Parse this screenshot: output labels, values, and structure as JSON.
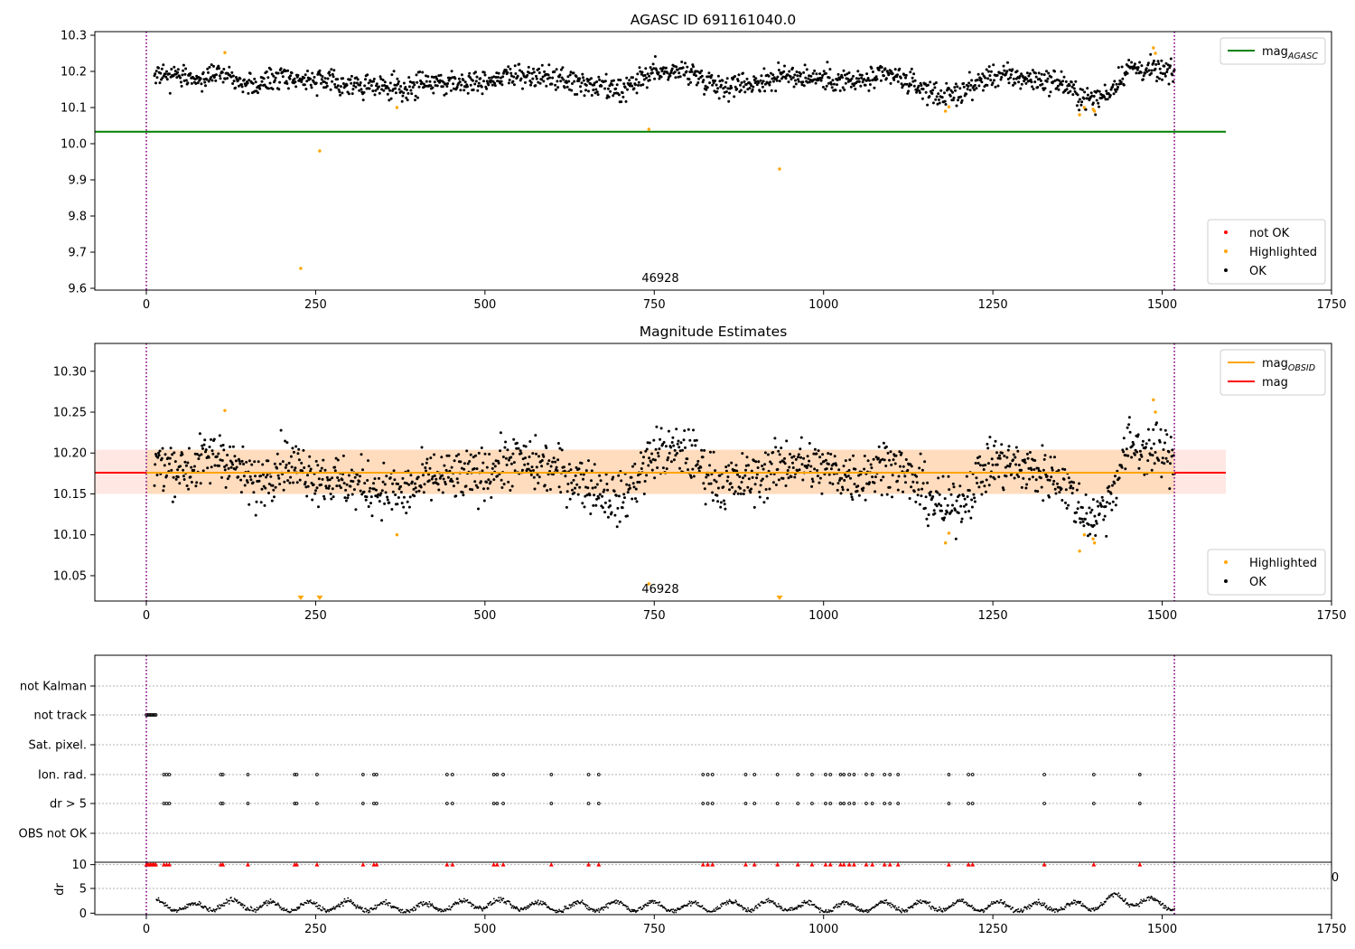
{
  "figure_title": "AGASC ID 691161040.0",
  "colors": {
    "ok": "#000000",
    "highlighted": "#ffa500",
    "not_ok": "#ff0000",
    "agasc_line": "#008000",
    "obsid_line": "#ffa500",
    "mag_line": "#ff0000",
    "obsid_band": "#ffdab9",
    "mag_band": "#ffe4e1",
    "obs_boundary": "#800080",
    "grid": "#b0b0b0"
  },
  "chart_data": [
    {
      "type": "scatter",
      "title": "AGASC ID 691161040.0",
      "xlim": [
        -76,
        1750
      ],
      "ylim": [
        9.595,
        10.31
      ],
      "x_ticks": [
        0,
        250,
        500,
        750,
        1000,
        1250,
        1500,
        1750
      ],
      "y_ticks": [
        "9.6",
        "9.7",
        "9.8",
        "9.9",
        "10.0",
        "10.1",
        "10.2",
        "10.3"
      ],
      "obsid_label": "46928",
      "obs_boundaries": [
        0,
        1518
      ],
      "hlines": [
        {
          "name": "mag_AGASC",
          "value": 10.033,
          "x": [
            -76,
            1594
          ],
          "color": "green"
        }
      ],
      "ok_trend": {
        "x": [
          12,
          60,
          110,
          160,
          200,
          260,
          320,
          380,
          420,
          480,
          540,
          600,
          660,
          700,
          750,
          800,
          850,
          900,
          950,
          1000,
          1050,
          1100,
          1150,
          1180,
          1200,
          1250,
          1300,
          1350,
          1380,
          1400,
          1420,
          1450,
          1500,
          1518
        ],
        "y": [
          10.19,
          10.18,
          10.2,
          10.16,
          10.19,
          10.17,
          10.16,
          10.15,
          10.17,
          10.17,
          10.19,
          10.18,
          10.16,
          10.14,
          10.2,
          10.2,
          10.16,
          10.17,
          10.19,
          10.18,
          10.17,
          10.19,
          10.15,
          10.13,
          10.14,
          10.19,
          10.18,
          10.17,
          10.13,
          10.12,
          10.14,
          10.21,
          10.2,
          10.19
        ],
        "scatter": 0.04,
        "count": 1500
      },
      "series": [
        {
          "name": "Highlighted",
          "marker": "point",
          "x": [
            116,
            228,
            256,
            370,
            742,
            935,
            1180,
            1185,
            1378,
            1385,
            1398,
            1400,
            1487,
            1490
          ],
          "y": [
            10.252,
            9.655,
            9.98,
            10.1,
            10.04,
            9.93,
            10.09,
            10.102,
            10.08,
            10.1,
            10.095,
            10.09,
            10.265,
            10.25
          ]
        }
      ],
      "legends": [
        {
          "placement": "upper right",
          "entries": [
            {
              "label": "mag",
              "sub": "AGASC",
              "style": "line",
              "color": "green"
            }
          ]
        },
        {
          "placement": "lower right",
          "entries": [
            {
              "label": "not OK",
              "style": "dot",
              "color": "red"
            },
            {
              "label": "Highlighted",
              "style": "dot",
              "color": "orange"
            },
            {
              "label": "OK",
              "style": "dot",
              "color": "black"
            }
          ]
        }
      ]
    },
    {
      "type": "scatter",
      "title": "Magnitude Estimates",
      "xlim": [
        -76,
        1750
      ],
      "ylim": [
        10.019,
        10.334
      ],
      "x_ticks": [
        0,
        250,
        500,
        750,
        1000,
        1250,
        1500,
        1750
      ],
      "y_ticks": [
        "10.05",
        "10.10",
        "10.15",
        "10.20",
        "10.25",
        "10.30"
      ],
      "obsid_label": "46928",
      "obs_boundaries": [
        0,
        1518
      ],
      "bands": [
        {
          "name": "mag range",
          "y": [
            10.15,
            10.204
          ],
          "x": [
            -76,
            1594
          ],
          "color": "mistyrose"
        },
        {
          "name": "mag_OBSID range",
          "y": [
            10.15,
            10.204
          ],
          "x": [
            0,
            1518
          ],
          "color": "peachpuff"
        }
      ],
      "hlines": [
        {
          "name": "mag",
          "value": 10.176,
          "x": [
            -76,
            1594
          ],
          "color": "red"
        },
        {
          "name": "mag_OBSID",
          "value": 10.176,
          "x": [
            0,
            1518
          ],
          "color": "orange"
        }
      ],
      "ok_trend": {
        "x": [
          12,
          60,
          110,
          160,
          200,
          260,
          320,
          380,
          420,
          480,
          540,
          600,
          660,
          700,
          750,
          800,
          850,
          900,
          950,
          1000,
          1050,
          1100,
          1150,
          1180,
          1200,
          1250,
          1300,
          1350,
          1380,
          1400,
          1420,
          1450,
          1500,
          1518
        ],
        "y": [
          10.19,
          10.18,
          10.2,
          10.16,
          10.19,
          10.17,
          10.16,
          10.15,
          10.17,
          10.17,
          10.19,
          10.18,
          10.16,
          10.14,
          10.2,
          10.2,
          10.16,
          10.17,
          10.19,
          10.18,
          10.17,
          10.19,
          10.15,
          10.13,
          10.14,
          10.19,
          10.18,
          10.17,
          10.13,
          10.12,
          10.14,
          10.21,
          10.2,
          10.19
        ],
        "scatter": 0.04,
        "count": 1500
      },
      "series": [
        {
          "name": "Highlighted",
          "marker": "point",
          "x": [
            116,
            370,
            742,
            1180,
            1185,
            1378,
            1385,
            1398,
            1400,
            1487,
            1490
          ],
          "y": [
            10.252,
            10.1,
            10.04,
            10.09,
            10.102,
            10.08,
            10.1,
            10.095,
            10.09,
            10.265,
            10.25
          ]
        },
        {
          "name": "Highlighted (below axis)",
          "marker": "triangle-down",
          "x": [
            228,
            256,
            935
          ],
          "y": [
            10.02,
            10.02,
            10.02
          ]
        }
      ],
      "legends": [
        {
          "placement": "upper right",
          "entries": [
            {
              "label": "mag",
              "sub": "OBSID",
              "style": "line",
              "color": "orange"
            },
            {
              "label": "mag",
              "sub": "",
              "style": "line",
              "color": "red"
            }
          ]
        },
        {
          "placement": "lower right",
          "entries": [
            {
              "label": "Highlighted",
              "style": "dot",
              "color": "orange"
            },
            {
              "label": "OK",
              "style": "dot",
              "color": "black"
            }
          ]
        }
      ]
    },
    {
      "type": "scatter",
      "title": "",
      "xlim": [
        -76,
        1750
      ],
      "x_ticks": [
        0,
        250,
        500,
        750,
        1000,
        1250,
        1500,
        1750
      ],
      "obs_boundaries": [
        0,
        1518
      ],
      "flag_categories": [
        "not Kalman",
        "not track",
        "Sat. pixel.",
        "Ion. rad.",
        "dr > 5",
        "OBS not OK"
      ],
      "flags": {
        "not track": [
          0,
          2,
          4,
          6,
          8,
          10,
          12,
          14
        ],
        "Ion. rad.": [
          26,
          30,
          34,
          110,
          113,
          150,
          219,
          222,
          252,
          320,
          336,
          340,
          444,
          452,
          513,
          518,
          527,
          598,
          653,
          668,
          822,
          829,
          836,
          885,
          898,
          932,
          962,
          983,
          1003,
          1010,
          1025,
          1030,
          1038,
          1045,
          1063,
          1072,
          1090,
          1098,
          1110,
          1185,
          1214,
          1220,
          1326,
          1399,
          1467
        ],
        "dr > 5": [
          26,
          30,
          34,
          110,
          113,
          150,
          219,
          222,
          252,
          320,
          336,
          340,
          444,
          452,
          513,
          518,
          527,
          598,
          653,
          668,
          822,
          829,
          836,
          885,
          898,
          932,
          962,
          983,
          1003,
          1010,
          1025,
          1030,
          1038,
          1045,
          1063,
          1072,
          1090,
          1098,
          1110,
          1185,
          1214,
          1220,
          1326,
          1399,
          1467
        ]
      }
    },
    {
      "type": "scatter",
      "title": "",
      "ylabel": "dr",
      "xlim": [
        -76,
        1750
      ],
      "ylim": [
        -0.3,
        10.3
      ],
      "x_ticks": [
        0,
        250,
        500,
        750,
        1000,
        1250,
        1500,
        1750
      ],
      "y_ticks": [
        "0",
        "5",
        "10"
      ],
      "obs_boundaries": [
        0,
        1518
      ],
      "dr_trend": {
        "x": [
          15,
          60,
          120,
          200,
          300,
          400,
          500,
          600,
          700,
          800,
          900,
          1000,
          1100,
          1200,
          1300,
          1400,
          1430,
          1518
        ],
        "y": [
          2,
          1,
          1.8,
          1.2,
          1.5,
          1,
          2,
          1.2,
          1.5,
          1.2,
          1.6,
          1.2,
          1.4,
          1.5,
          1.3,
          1.5,
          3,
          1.5
        ],
        "scatter": 1.6,
        "count": 1500
      },
      "series": [
        {
          "name": "dr > 5",
          "marker": "triangle-up",
          "color": "red",
          "y": 10,
          "x": [
            0,
            2,
            4,
            6,
            8,
            10,
            12,
            14,
            26,
            30,
            34,
            110,
            113,
            150,
            219,
            222,
            252,
            320,
            336,
            340,
            444,
            452,
            513,
            518,
            527,
            598,
            653,
            668,
            822,
            829,
            836,
            885,
            898,
            932,
            962,
            983,
            1003,
            1010,
            1025,
            1030,
            1038,
            1045,
            1063,
            1072,
            1090,
            1098,
            1110,
            1185,
            1214,
            1220,
            1326,
            1399,
            1467
          ]
        }
      ],
      "clipped_tick_label": "0"
    }
  ]
}
